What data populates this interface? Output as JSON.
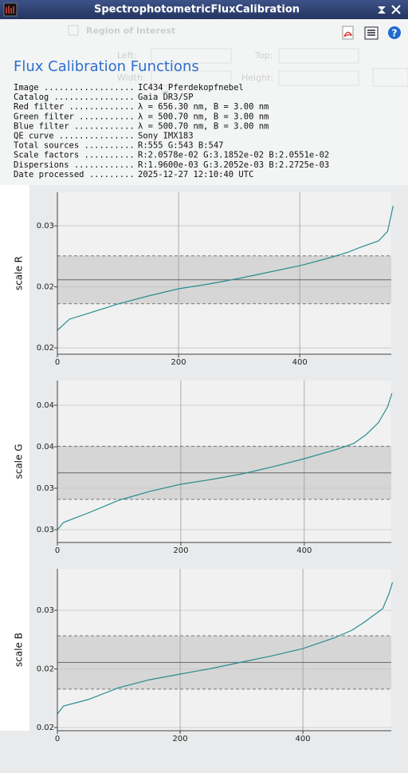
{
  "window": {
    "title": "SpectrophotometricFluxCalibration"
  },
  "background_form": {
    "section": "Region of Interest",
    "fields": [
      "Left:",
      "Top:",
      "Width:",
      "Height:"
    ]
  },
  "report": {
    "heading": "Flux Calibration Functions",
    "rows": [
      {
        "label": "Image ..................",
        "value": "IC434_Pferdekopfnebel"
      },
      {
        "label": "Catalog ................",
        "value": "Gaia DR3/SP"
      },
      {
        "label": "Red filter .............",
        "value": "λ = 656.30 nm, B = 3.00 nm"
      },
      {
        "label": "Green filter ...........",
        "value": "λ = 500.70 nm, B = 3.00 nm"
      },
      {
        "label": "Blue filter ............",
        "value": "λ = 500.70 nm, B = 3.00 nm"
      },
      {
        "label": "QE curve ...............",
        "value": "Sony IMX183"
      },
      {
        "label": "Total sources ..........",
        "value": "R:555 G:543 B:547"
      },
      {
        "label": "Scale factors ..........",
        "value": "R:2.0578e-02 G:3.1852e-02 B:2.0551e-02"
      },
      {
        "label": "Dispersions ............",
        "value": "R:1.9600e-03 G:3.2052e-03 B:2.2725e-03"
      },
      {
        "label": "Date processed .........",
        "value": "2025-12-27 12:10:40 UTC"
      }
    ]
  },
  "chart_data": [
    {
      "type": "line",
      "ylabel": "scale R",
      "color": "#2a8c8c",
      "grid": true,
      "x": [
        0,
        20,
        50,
        100,
        150,
        200,
        250,
        300,
        350,
        400,
        450,
        480,
        500,
        530,
        545,
        554
      ],
      "values": [
        0.01644,
        0.01735,
        0.01781,
        0.01859,
        0.01925,
        0.01984,
        0.02023,
        0.02069,
        0.02121,
        0.02173,
        0.02239,
        0.02284,
        0.02324,
        0.02376,
        0.02454,
        0.02663
      ],
      "scale": 0.020578,
      "dispersion": 0.00196,
      "xlim": [
        0,
        551
      ],
      "xticks": [
        0,
        200,
        400
      ],
      "ylim": [
        0.01448,
        0.02775
      ],
      "yticks": [
        {
          "value": 0.025,
          "label": "0.03"
        },
        {
          "value": 0.02,
          "label": "0.02"
        },
        {
          "value": 0.015,
          "label": "0.02"
        }
      ]
    },
    {
      "type": "line",
      "ylabel": "scale G",
      "color": "#2a8c8c",
      "grid": true,
      "x": [
        0,
        10,
        50,
        100,
        150,
        200,
        250,
        300,
        350,
        400,
        450,
        480,
        500,
        520,
        535,
        542
      ],
      "values": [
        0.025,
        0.02587,
        0.02702,
        0.02856,
        0.02962,
        0.03048,
        0.03106,
        0.03173,
        0.0326,
        0.03356,
        0.03462,
        0.03538,
        0.03644,
        0.03788,
        0.03981,
        0.04144
      ],
      "scale": 0.031852,
      "dispersion": 0.0032052,
      "xlim": [
        0,
        541
      ],
      "xticks": [
        0,
        200,
        400
      ],
      "ylim": [
        0.02346,
        0.04298
      ],
      "yticks": [
        {
          "value": 0.04,
          "label": "0.04"
        },
        {
          "value": 0.035,
          "label": "0.04"
        },
        {
          "value": 0.03,
          "label": "0.03"
        },
        {
          "value": 0.025,
          "label": "0.03"
        }
      ]
    },
    {
      "type": "line",
      "ylabel": "scale B",
      "color": "#2a8c8c",
      "grid": true,
      "x": [
        0,
        10,
        50,
        100,
        150,
        200,
        250,
        300,
        350,
        400,
        450,
        480,
        500,
        530,
        540,
        546
      ],
      "values": [
        0.01616,
        0.01684,
        0.01738,
        0.0184,
        0.01908,
        0.01956,
        0.02003,
        0.02058,
        0.02112,
        0.02173,
        0.02262,
        0.0233,
        0.02398,
        0.02514,
        0.02636,
        0.02738
      ],
      "scale": 0.020551,
      "dispersion": 0.0022725,
      "xlim": [
        0,
        544
      ],
      "xticks": [
        0,
        200,
        400
      ],
      "ylim": [
        0.01473,
        0.02854
      ],
      "yticks": [
        {
          "value": 0.025,
          "label": "0.03"
        },
        {
          "value": 0.02,
          "label": "0.02"
        },
        {
          "value": 0.015,
          "label": "0.02"
        }
      ]
    }
  ]
}
